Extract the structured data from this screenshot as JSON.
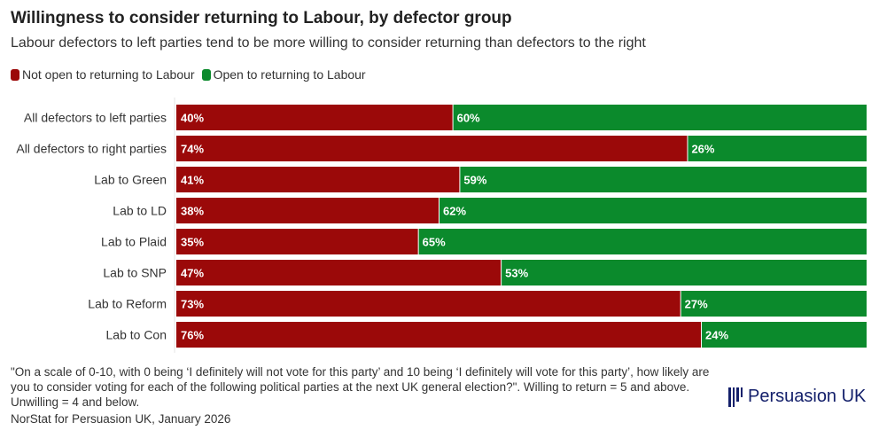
{
  "title": "Willingness to consider returning to Labour, by defector group",
  "subtitle": "Labour defectors to left parties tend to be more willing to consider returning than defectors to the right",
  "note": "\"On a scale of 0-10, with 0 being ‘I definitely will not vote for this party’ and 10 being ‘I definitely will vote for this party’, how likely are you to consider voting for each of the following political parties at the next UK general election?\". Willing to return = 5 and above. Unwilling = 4 and below.",
  "source": "NorStat for Persuasion UK, January 2026",
  "logo": "Persuasion UK",
  "chart_data": {
    "type": "bar",
    "orientation": "horizontal-stacked-100",
    "categories": [
      "All defectors to left parties",
      "All defectors to right parties",
      "Lab to Green",
      "Lab to LD",
      "Lab to Plaid",
      "Lab to SNP",
      "Lab to Reform",
      "Lab to Con"
    ],
    "series": [
      {
        "name": "Not open to returning to Labour",
        "color": "#9b0909",
        "values": [
          40,
          74,
          41,
          38,
          35,
          47,
          73,
          76
        ]
      },
      {
        "name": "Open to returning to Labour",
        "color": "#0b8a2c",
        "values": [
          60,
          26,
          59,
          62,
          65,
          53,
          27,
          24
        ]
      }
    ],
    "xlim": [
      0,
      100
    ],
    "legend": "top-left"
  }
}
